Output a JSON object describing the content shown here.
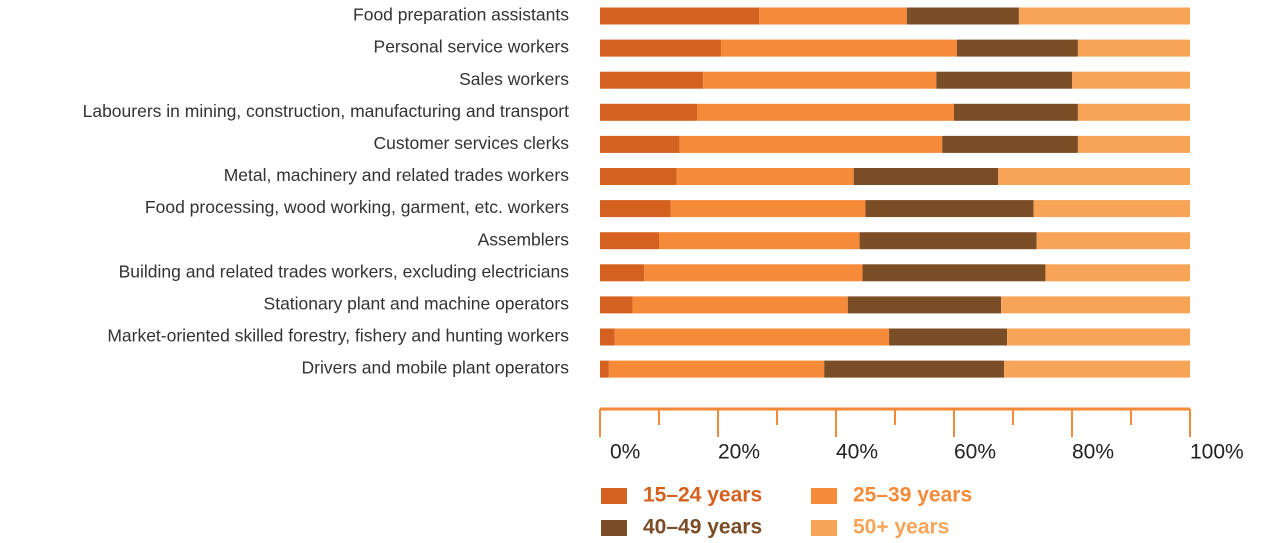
{
  "chart_data": {
    "type": "stacked_barh",
    "categories": [
      "Food preparation assistants",
      "Personal service workers",
      "Sales workers",
      "Labourers in mining, construction, manufacturing and transport",
      "Customer services clerks",
      "Metal, machinery and related trades workers",
      "Food processing, wood working, garment, etc. workers",
      "Assemblers",
      "Building and related trades workers, excluding electricians",
      "Stationary plant and machine operators",
      "Market-oriented skilled forestry, fishery and hunting workers",
      "Drivers and mobile plant operators"
    ],
    "series": [
      {
        "name": "15–24 years",
        "color": "#d4611f",
        "values": [
          27,
          20.5,
          17.5,
          16.5,
          13.5,
          13,
          12,
          10,
          7.5,
          5.5,
          2.5,
          1.5
        ]
      },
      {
        "name": "25–39 years",
        "color": "#f58a38",
        "values": [
          25,
          40,
          39.5,
          43.5,
          44.5,
          30,
          33,
          34,
          37,
          36.5,
          46.5,
          36.5
        ]
      },
      {
        "name": "40–49 years",
        "color": "#7b4d27",
        "values": [
          19,
          20.5,
          23,
          21,
          23,
          24.5,
          28.5,
          30,
          31,
          26,
          20,
          30.5
        ]
      },
      {
        "name": "50+ years",
        "color": "#f7a458",
        "values": [
          29,
          19,
          20,
          19,
          19,
          32.5,
          26.5,
          26,
          24.5,
          32,
          31,
          31.5
        ]
      }
    ],
    "xlim": [
      0,
      100
    ],
    "xticks": [
      {
        "value": 0,
        "label": "0%"
      },
      {
        "value": 20,
        "label": "20%"
      },
      {
        "value": 40,
        "label": "40%"
      },
      {
        "value": 60,
        "label": "60%"
      },
      {
        "value": 80,
        "label": "80%"
      },
      {
        "value": 100,
        "label": "100%"
      }
    ],
    "minor_xticks": [
      10,
      30,
      50,
      70,
      90
    ],
    "axis_color": "#f58a38"
  }
}
